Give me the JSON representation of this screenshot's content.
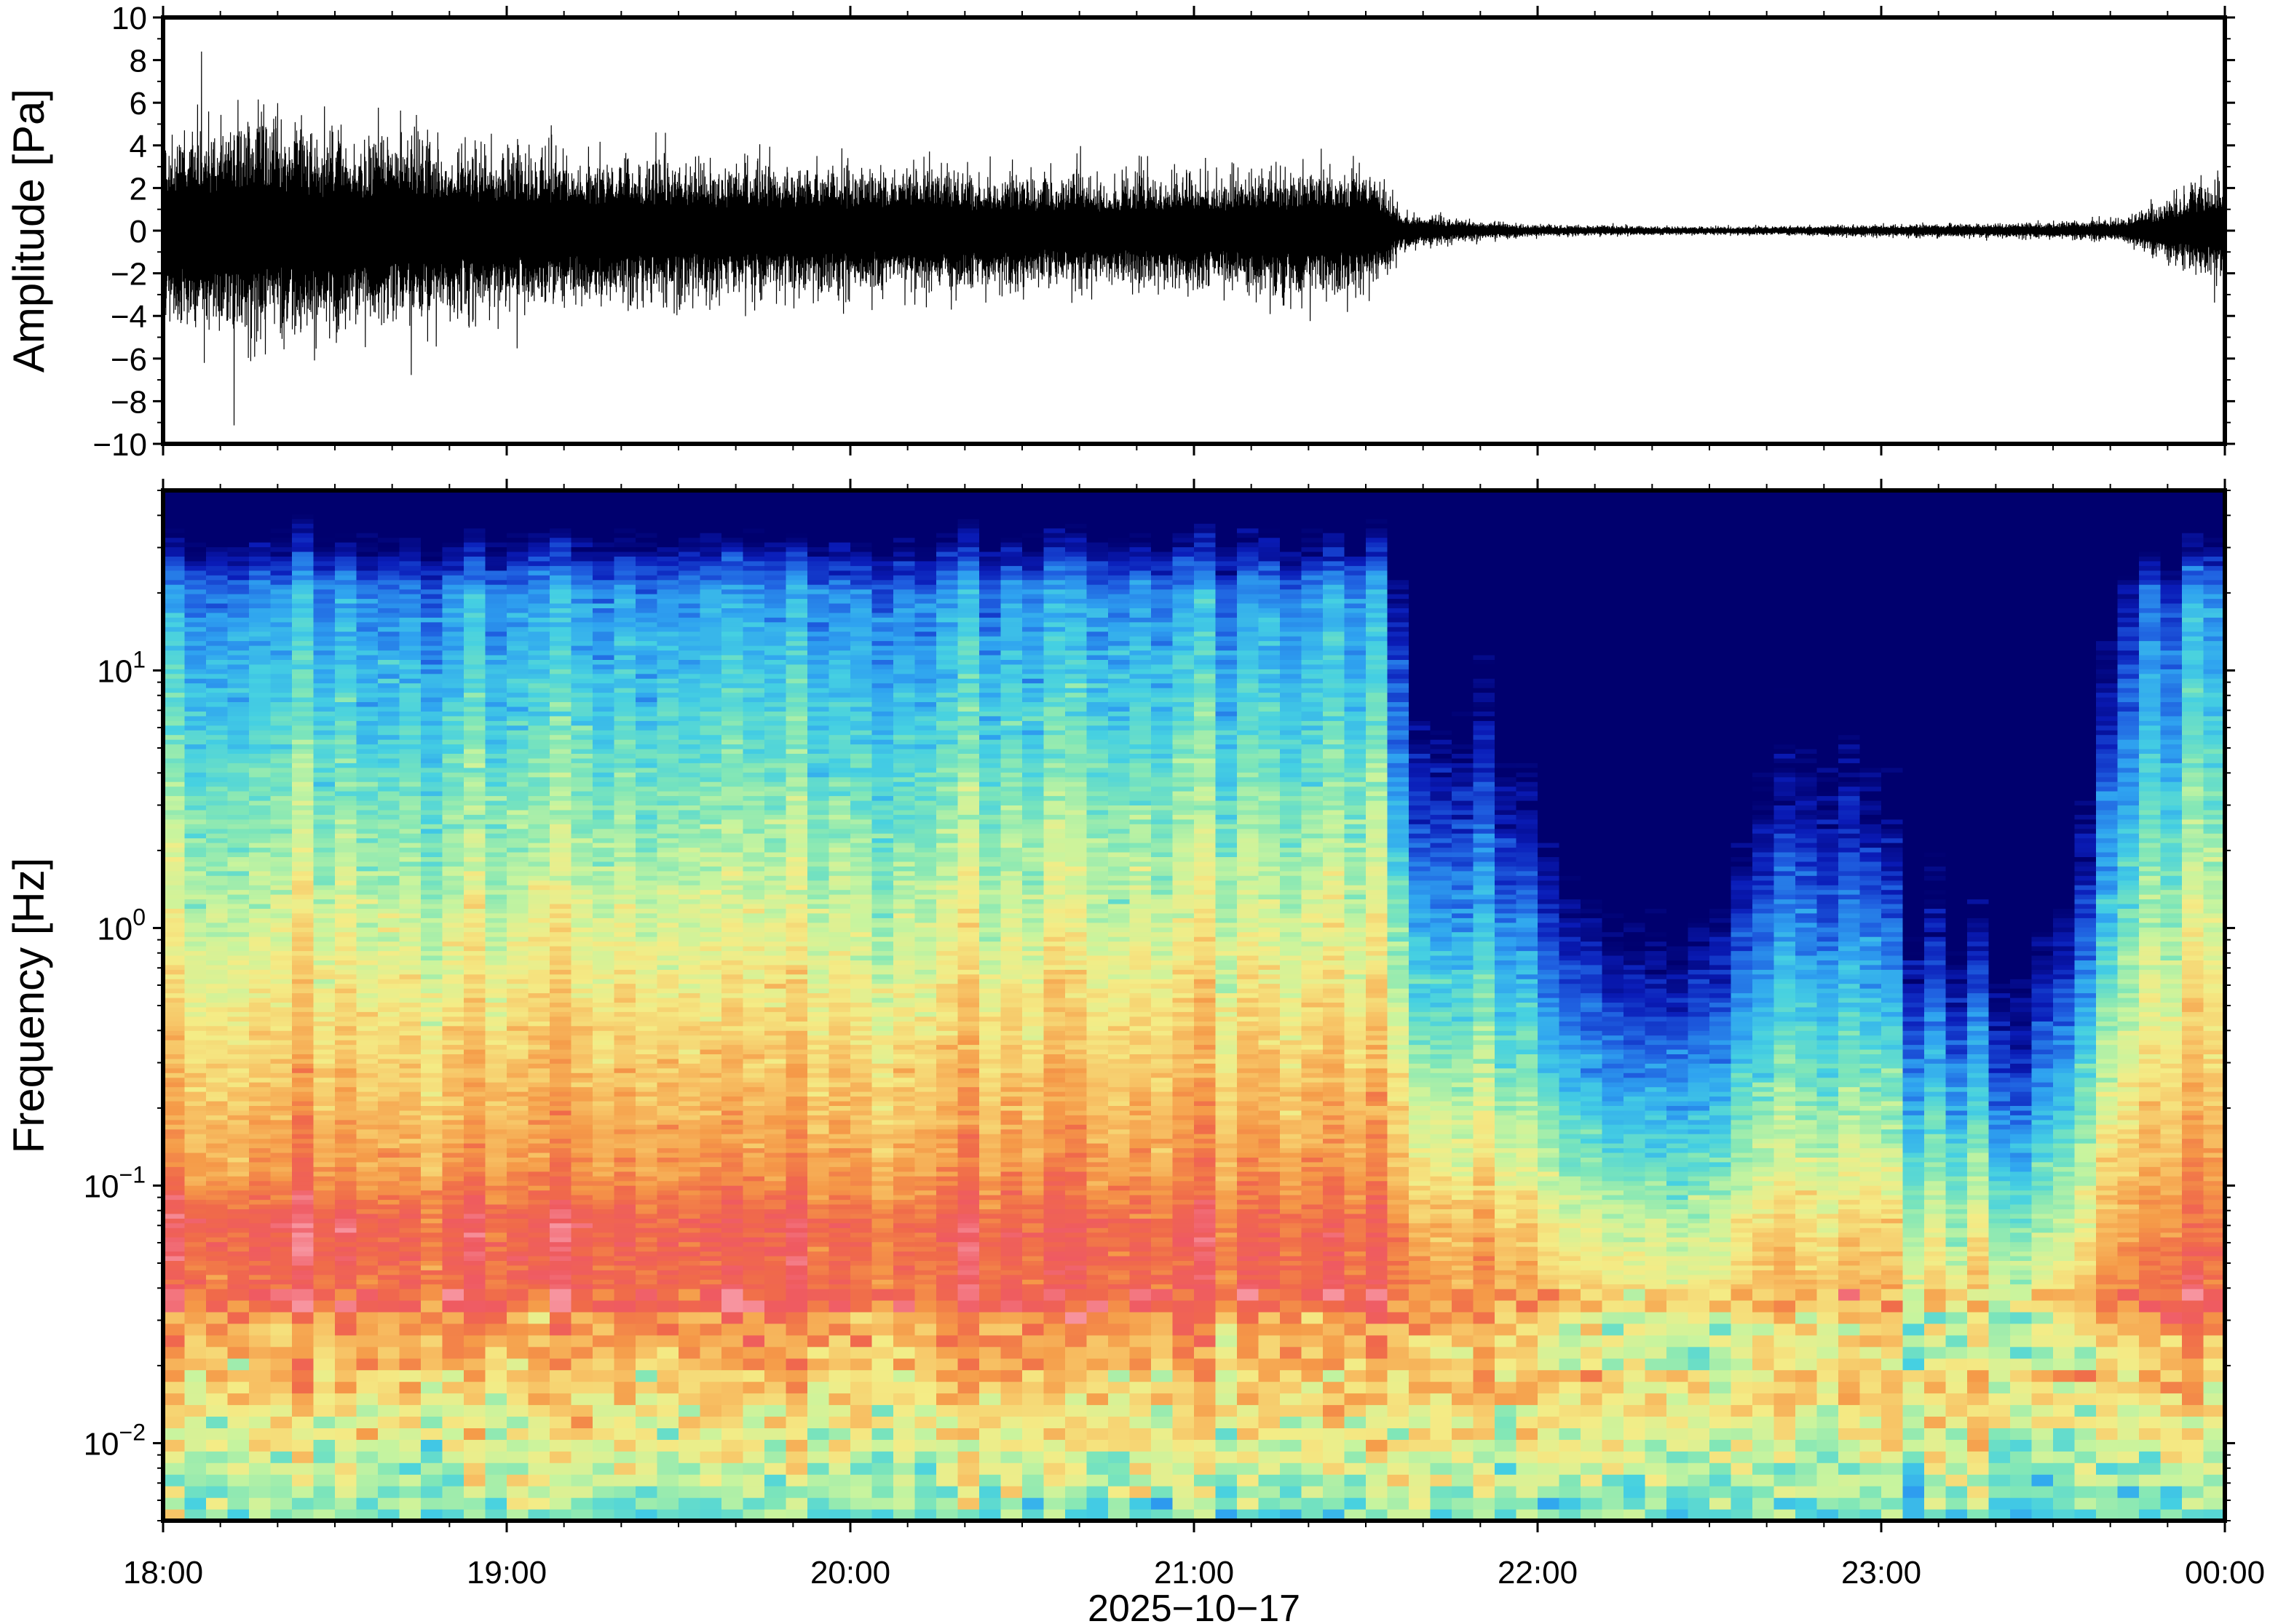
{
  "chart_data": [
    {
      "type": "line",
      "panel": "waveform",
      "ylabel": "Amplitude [Pa]",
      "ylim": [
        -10,
        10
      ],
      "yticks": [
        10,
        8,
        6,
        4,
        2,
        0,
        -2,
        -4,
        -6,
        -8,
        -10
      ],
      "ytick_labels": [
        "10",
        "8",
        "6",
        "4",
        "2",
        "0",
        "−2",
        "−4",
        "−6",
        "−8",
        "−10"
      ],
      "grid": false,
      "series": [
        {
          "color": "#000000",
          "envelope_hours": [
            0,
            0.25,
            0.5,
            0.75,
            1.0,
            1.25,
            1.5,
            1.75,
            2.0,
            2.25,
            2.5,
            2.75,
            3.0,
            3.25,
            3.5,
            3.55,
            3.6,
            3.7,
            3.8,
            4.0,
            4.5,
            5.0,
            5.5,
            5.7,
            5.8,
            5.9,
            6.0
          ],
          "envelope_amplitude": [
            2.6,
            3.0,
            2.5,
            2.3,
            2.1,
            1.9,
            1.8,
            1.7,
            1.6,
            1.6,
            1.5,
            1.4,
            1.5,
            1.6,
            1.6,
            1.2,
            0.5,
            0.35,
            0.25,
            0.15,
            0.1,
            0.15,
            0.2,
            0.3,
            0.7,
            1.1,
            1.3
          ],
          "spikes": [
            {
              "t": 0.12,
              "v": -6.2
            },
            {
              "t": 0.17,
              "v": 4.0
            },
            {
              "t": 0.28,
              "v": 4.3
            },
            {
              "t": 0.42,
              "v": 3.8
            },
            {
              "t": 0.77,
              "v": -5.2
            },
            {
              "t": 0.95,
              "v": -4.2
            },
            {
              "t": 1.98,
              "v": -3.9
            },
            {
              "t": 1.85,
              "v": 2.8
            },
            {
              "t": 2.95,
              "v": 2.7
            },
            {
              "t": 3.15,
              "v": 2.4
            }
          ]
        }
      ]
    },
    {
      "type": "heatmap",
      "panel": "spectrogram",
      "ylabel": "Frequency [Hz]",
      "yscale": "log",
      "ylim": [
        0.005,
        50
      ],
      "ytick_labels": [
        {
          "base": "10",
          "exp": "1"
        },
        {
          "base": "10",
          "exp": "0"
        },
        {
          "base": "10",
          "exp": "−1"
        },
        {
          "base": "10",
          "exp": "−2"
        }
      ],
      "ytick_values": [
        10,
        1,
        0.1,
        0.01
      ],
      "colormap": [
        "#00006e",
        "#0a1cb8",
        "#1f5fe0",
        "#2fa3f0",
        "#45d0e2",
        "#7fe6b8",
        "#c8f49e",
        "#f4ec86",
        "#f7c466",
        "#f59a48",
        "#f06a4a",
        "#ef5a62",
        "#f7949f"
      ],
      "note_quiet_period_hours": [
        3.55,
        5.8
      ]
    }
  ],
  "xaxis": {
    "xlabel": "2025−10−17",
    "xlim_hours": [
      0,
      6
    ],
    "tick_hours": [
      0,
      1,
      2,
      3,
      4,
      5,
      6
    ],
    "tick_labels": [
      "18:00",
      "19:00",
      "20:00",
      "21:00",
      "22:00",
      "23:00",
      "00:00"
    ],
    "minor_ticks_per_hour": 6
  }
}
